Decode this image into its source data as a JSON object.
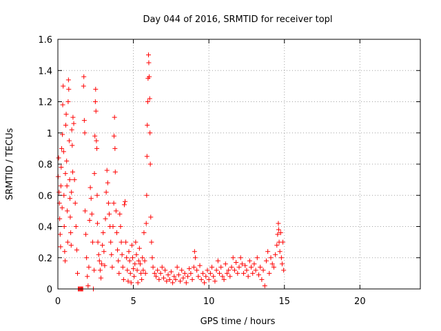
{
  "chart_data": {
    "type": "scatter",
    "title": "Day 044 of 2016, SRMTID for receiver topl",
    "xlabel": "GPS time / hours",
    "ylabel": "SRMTID / TECUs",
    "xlim": [
      0,
      24
    ],
    "ylim": [
      0,
      1.6
    ],
    "x_ticks": [
      0,
      5,
      10,
      15,
      20
    ],
    "x_tick_labels": [
      "0",
      "5",
      "10",
      "15",
      "20"
    ],
    "y_ticks": [
      0,
      0.2,
      0.4,
      0.6,
      0.8,
      1.0,
      1.2,
      1.4,
      1.6
    ],
    "y_tick_labels": [
      "0",
      "0.2",
      "0.4",
      "0.6",
      "0.8",
      "1",
      "1.2",
      "1.4",
      "1.6"
    ],
    "grid": true,
    "marker": "+",
    "color": "#ff0000",
    "series": [
      {
        "name": "SRMTID",
        "points": [
          [
            0.02,
            0.72
          ],
          [
            0.05,
            0.84
          ],
          [
            0.08,
            0.62
          ],
          [
            0.1,
            0.55
          ],
          [
            0.12,
            0.45
          ],
          [
            0.15,
            0.35
          ],
          [
            0.18,
            0.27
          ],
          [
            0.2,
            0.66
          ],
          [
            0.22,
            0.78
          ],
          [
            0.25,
            0.9
          ],
          [
            0.28,
            0.52
          ],
          [
            0.3,
            0.99
          ],
          [
            0.32,
            1.18
          ],
          [
            0.35,
            1.3
          ],
          [
            0.38,
            0.88
          ],
          [
            0.4,
            0.6
          ],
          [
            0.42,
            0.4
          ],
          [
            0.45,
            0.24
          ],
          [
            0.48,
            0.18
          ],
          [
            0.5,
            0.74
          ],
          [
            0.52,
            1.05
          ],
          [
            0.55,
            1.12
          ],
          [
            0.58,
            0.82
          ],
          [
            0.6,
            0.66
          ],
          [
            0.62,
            0.5
          ],
          [
            0.65,
            0.3
          ],
          [
            0.68,
            1.2
          ],
          [
            0.7,
            1.34
          ],
          [
            0.72,
            1.28
          ],
          [
            0.75,
            0.95
          ],
          [
            0.78,
            0.7
          ],
          [
            0.8,
            0.58
          ],
          [
            0.82,
            0.46
          ],
          [
            0.85,
            0.36
          ],
          [
            0.88,
            0.28
          ],
          [
            0.9,
            0.62
          ],
          [
            0.92,
            1.02
          ],
          [
            0.95,
            0.92
          ],
          [
            0.98,
            0.75
          ],
          [
            1.0,
            1.1
          ],
          [
            1.05,
            1.06
          ],
          [
            1.1,
            0.7
          ],
          [
            1.15,
            0.55
          ],
          [
            1.2,
            0.4
          ],
          [
            1.25,
            0.25
          ],
          [
            1.3,
            0.1
          ],
          [
            1.35,
            0.0
          ],
          [
            1.4,
            0.0
          ],
          [
            1.45,
            0.0
          ],
          [
            1.5,
            0.0
          ],
          [
            1.55,
            0.0
          ],
          [
            1.6,
            0.0
          ],
          [
            1.65,
            0.0
          ],
          [
            1.7,
            1.3
          ],
          [
            1.72,
            1.36
          ],
          [
            1.75,
            1.08
          ],
          [
            1.78,
            1.0
          ],
          [
            1.8,
            0.5
          ],
          [
            1.85,
            0.35
          ],
          [
            1.9,
            0.2
          ],
          [
            1.95,
            0.08
          ],
          [
            2.0,
            0.02
          ],
          [
            2.05,
            0.14
          ],
          [
            2.1,
            0.44
          ],
          [
            2.15,
            0.65
          ],
          [
            2.2,
            0.58
          ],
          [
            2.25,
            0.48
          ],
          [
            2.3,
            0.3
          ],
          [
            2.35,
            0.0
          ],
          [
            2.4,
            0.12
          ],
          [
            2.42,
            0.74
          ],
          [
            2.45,
            0.98
          ],
          [
            2.48,
            1.2
          ],
          [
            2.5,
            1.28
          ],
          [
            2.52,
            1.14
          ],
          [
            2.55,
            0.95
          ],
          [
            2.58,
            0.9
          ],
          [
            2.6,
            0.6
          ],
          [
            2.62,
            0.42
          ],
          [
            2.65,
            0.3
          ],
          [
            2.7,
            0.22
          ],
          [
            2.75,
            0.18
          ],
          [
            2.8,
            0.12
          ],
          [
            2.85,
            0.07
          ],
          [
            2.9,
            0.16
          ],
          [
            2.95,
            0.28
          ],
          [
            3.0,
            0.36
          ],
          [
            3.05,
            0.24
          ],
          [
            3.1,
            0.15
          ],
          [
            3.15,
            0.45
          ],
          [
            3.2,
            0.62
          ],
          [
            3.25,
            0.76
          ],
          [
            3.3,
            0.68
          ],
          [
            3.35,
            0.55
          ],
          [
            3.4,
            0.48
          ],
          [
            3.45,
            0.4
          ],
          [
            3.5,
            0.3
          ],
          [
            3.55,
            0.22
          ],
          [
            3.6,
            0.14
          ],
          [
            3.65,
            0.4
          ],
          [
            3.7,
            0.55
          ],
          [
            3.72,
            0.98
          ],
          [
            3.75,
            1.1
          ],
          [
            3.78,
            0.9
          ],
          [
            3.8,
            0.75
          ],
          [
            3.85,
            0.5
          ],
          [
            3.9,
            0.36
          ],
          [
            3.95,
            0.25
          ],
          [
            4.0,
            0.18
          ],
          [
            4.05,
            0.1
          ],
          [
            4.1,
            0.48
          ],
          [
            4.15,
            0.4
          ],
          [
            4.2,
            0.3
          ],
          [
            4.25,
            0.22
          ],
          [
            4.3,
            0.14
          ],
          [
            4.35,
            0.06
          ],
          [
            4.4,
            0.54
          ],
          [
            4.45,
            0.56
          ],
          [
            4.5,
            0.3
          ],
          [
            4.55,
            0.2
          ],
          [
            4.6,
            0.12
          ],
          [
            4.65,
            0.05
          ],
          [
            4.7,
            0.24
          ],
          [
            4.75,
            0.18
          ],
          [
            4.8,
            0.1
          ],
          [
            4.85,
            0.04
          ],
          [
            4.9,
            0.28
          ],
          [
            4.95,
            0.2
          ],
          [
            5.0,
            0.13
          ],
          [
            5.05,
            0.08
          ],
          [
            5.1,
            0.16
          ],
          [
            5.15,
            0.3
          ],
          [
            5.2,
            0.22
          ],
          [
            5.25,
            0.12
          ],
          [
            5.3,
            0.04
          ],
          [
            5.35,
            0.18
          ],
          [
            5.4,
            0.26
          ],
          [
            5.45,
            0.16
          ],
          [
            5.5,
            0.1
          ],
          [
            5.55,
            0.06
          ],
          [
            5.6,
            0.2
          ],
          [
            5.65,
            0.12
          ],
          [
            5.7,
            0.36
          ],
          [
            5.75,
            0.18
          ],
          [
            5.8,
            0.1
          ],
          [
            5.85,
            0.42
          ],
          [
            5.88,
            0.6
          ],
          [
            5.9,
            0.85
          ],
          [
            5.92,
            1.05
          ],
          [
            5.95,
            1.2
          ],
          [
            5.97,
            1.35
          ],
          [
            6.0,
            1.5
          ],
          [
            6.02,
            1.45
          ],
          [
            6.05,
            1.36
          ],
          [
            6.08,
            1.22
          ],
          [
            6.1,
            1.0
          ],
          [
            6.12,
            0.8
          ],
          [
            6.15,
            0.46
          ],
          [
            6.2,
            0.3
          ],
          [
            6.25,
            0.2
          ],
          [
            6.3,
            0.14
          ],
          [
            6.4,
            0.1
          ],
          [
            6.5,
            0.08
          ],
          [
            6.6,
            0.12
          ],
          [
            6.7,
            0.06
          ],
          [
            6.8,
            0.1
          ],
          [
            6.9,
            0.14
          ],
          [
            7.0,
            0.07
          ],
          [
            7.1,
            0.12
          ],
          [
            7.2,
            0.05
          ],
          [
            7.3,
            0.09
          ],
          [
            7.4,
            0.06
          ],
          [
            7.5,
            0.11
          ],
          [
            7.6,
            0.04
          ],
          [
            7.7,
            0.08
          ],
          [
            7.8,
            0.06
          ],
          [
            7.9,
            0.14
          ],
          [
            8.0,
            0.09
          ],
          [
            8.1,
            0.05
          ],
          [
            8.2,
            0.12
          ],
          [
            8.3,
            0.07
          ],
          [
            8.4,
            0.1
          ],
          [
            8.5,
            0.04
          ],
          [
            8.6,
            0.08
          ],
          [
            8.7,
            0.13
          ],
          [
            8.8,
            0.1
          ],
          [
            8.9,
            0.06
          ],
          [
            9.0,
            0.14
          ],
          [
            9.05,
            0.24
          ],
          [
            9.1,
            0.2
          ],
          [
            9.2,
            0.12
          ],
          [
            9.3,
            0.08
          ],
          [
            9.4,
            0.15
          ],
          [
            9.5,
            0.06
          ],
          [
            9.6,
            0.1
          ],
          [
            9.7,
            0.04
          ],
          [
            9.8,
            0.08
          ],
          [
            9.9,
            0.12
          ],
          [
            10.0,
            0.06
          ],
          [
            10.1,
            0.1
          ],
          [
            10.2,
            0.14
          ],
          [
            10.3,
            0.08
          ],
          [
            10.4,
            0.05
          ],
          [
            10.5,
            0.12
          ],
          [
            10.6,
            0.18
          ],
          [
            10.7,
            0.1
          ],
          [
            10.8,
            0.14
          ],
          [
            10.9,
            0.08
          ],
          [
            11.0,
            0.06
          ],
          [
            11.1,
            0.16
          ],
          [
            11.2,
            0.1
          ],
          [
            11.3,
            0.12
          ],
          [
            11.4,
            0.08
          ],
          [
            11.5,
            0.14
          ],
          [
            11.6,
            0.2
          ],
          [
            11.7,
            0.12
          ],
          [
            11.8,
            0.17
          ],
          [
            11.9,
            0.1
          ],
          [
            12.0,
            0.14
          ],
          [
            12.1,
            0.2
          ],
          [
            12.2,
            0.16
          ],
          [
            12.3,
            0.1
          ],
          [
            12.4,
            0.15
          ],
          [
            12.5,
            0.12
          ],
          [
            12.6,
            0.08
          ],
          [
            12.7,
            0.18
          ],
          [
            12.8,
            0.14
          ],
          [
            12.9,
            0.1
          ],
          [
            13.0,
            0.16
          ],
          [
            13.1,
            0.12
          ],
          [
            13.2,
            0.2
          ],
          [
            13.3,
            0.09
          ],
          [
            13.4,
            0.14
          ],
          [
            13.5,
            0.06
          ],
          [
            13.6,
            0.12
          ],
          [
            13.7,
            0.02
          ],
          [
            13.8,
            0.18
          ],
          [
            13.9,
            0.24
          ],
          [
            14.0,
            0.1
          ],
          [
            14.1,
            0.2
          ],
          [
            14.2,
            0.16
          ],
          [
            14.3,
            0.14
          ],
          [
            14.4,
            0.22
          ],
          [
            14.5,
            0.28
          ],
          [
            14.55,
            0.35
          ],
          [
            14.6,
            0.42
          ],
          [
            14.62,
            0.38
          ],
          [
            14.65,
            0.3
          ],
          [
            14.7,
            0.24
          ],
          [
            14.75,
            0.36
          ],
          [
            14.8,
            0.2
          ],
          [
            14.85,
            0.16
          ],
          [
            14.9,
            0.3
          ],
          [
            14.95,
            0.12
          ]
        ]
      }
    ]
  }
}
